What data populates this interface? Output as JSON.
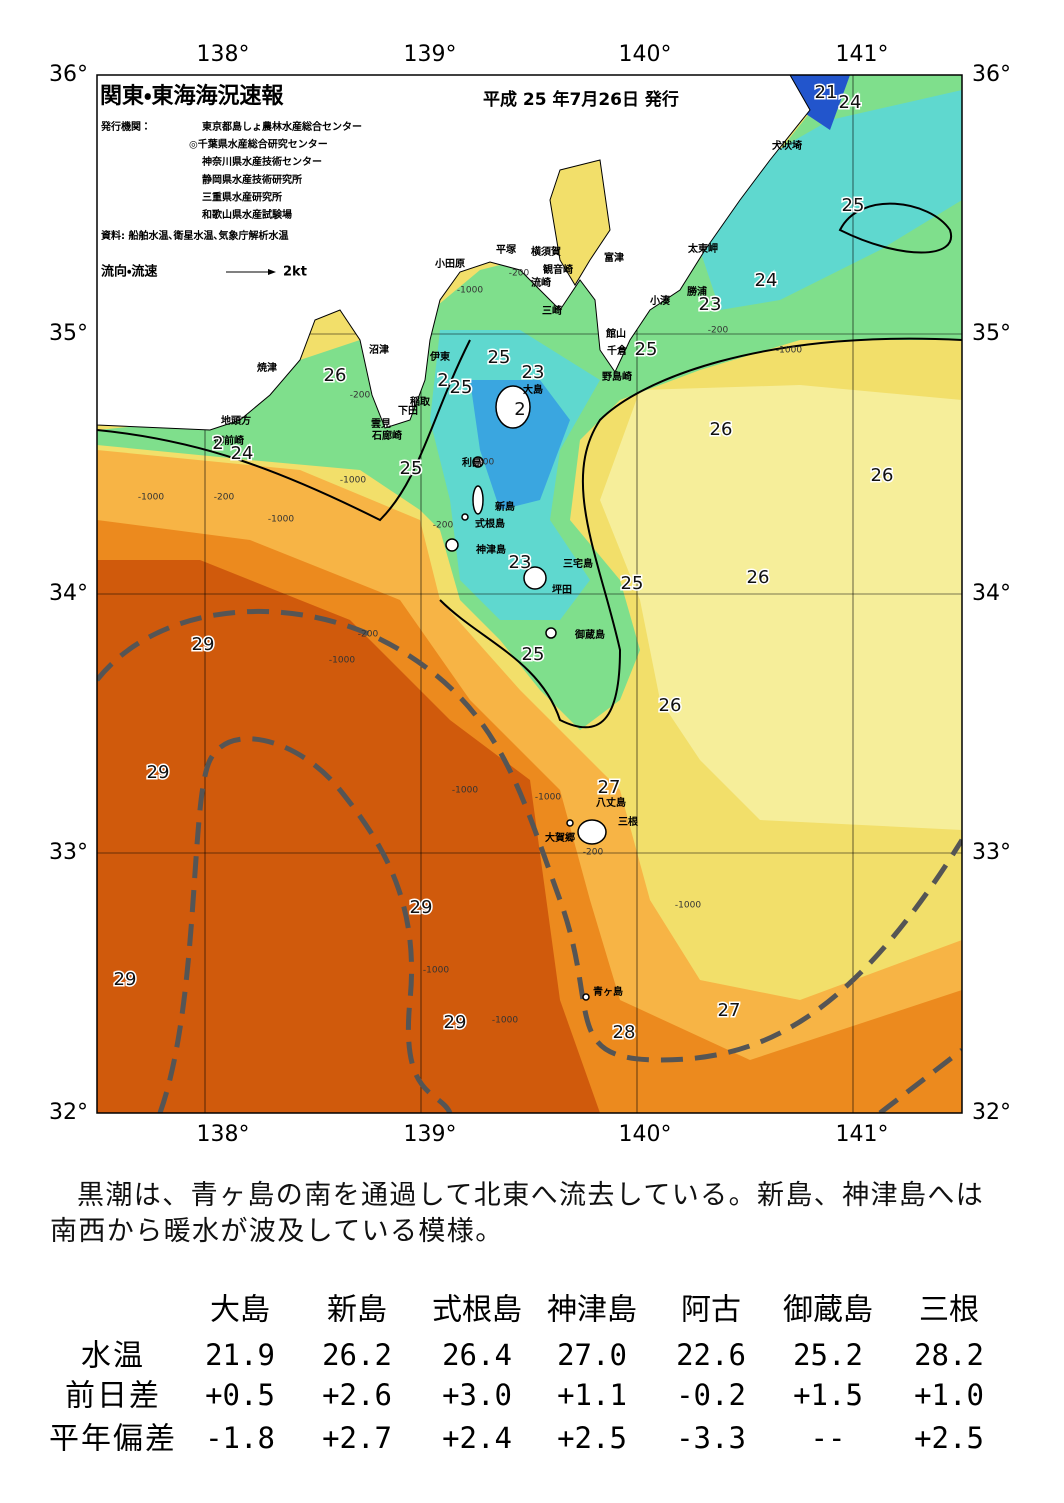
{
  "map": {
    "title": "関東・東海海況速報",
    "date": "平成 25 年7月26日 発行",
    "issuer_label": "発行機関：",
    "issuers": [
      "東京都島しょ農林水産総合センター",
      "◎千葉県水産総合研究センター",
      "神奈川県水産技術センター",
      "静岡県水産技術研究所",
      "三重県水産研究所",
      "和歌山県水産試験場"
    ],
    "source": "資料: 船舶水温､衛星水温､気象庁解析水温",
    "flow_legend": "流向・流速",
    "flow_scale": "2kt",
    "lon_labels": [
      "138°",
      "139°",
      "140°",
      "141°"
    ],
    "lat_labels": [
      "36°",
      "35°",
      "34°",
      "33°",
      "32°"
    ],
    "places": [
      "犬吠埼",
      "太東岬",
      "勝浦",
      "小湊",
      "館山",
      "千倉",
      "野島崎",
      "富津",
      "横須賀",
      "観音崎",
      "平塚",
      "流崎",
      "三崎",
      "小田原",
      "沼津",
      "伊東",
      "焼津",
      "稲取",
      "下田",
      "雲見",
      "石廊崎",
      "地頭方",
      "御前崎",
      "大島",
      "利島",
      "新島",
      "式根島",
      "神津島",
      "三宅島",
      "坪田",
      "御蔵島",
      "八丈島",
      "三根",
      "大賀郷",
      "青ヶ島"
    ],
    "isotherm_labels": [
      21,
      24,
      25,
      24,
      23,
      25,
      25,
      23,
      26,
      2,
      25,
      2,
      26,
      2,
      24,
      25,
      26,
      23,
      26,
      25,
      29,
      25,
      26,
      29,
      27,
      29,
      29,
      27,
      29,
      28
    ],
    "isobath_labels": [
      -200,
      -1000,
      -1000,
      -200,
      -1000,
      -200,
      -1000,
      -200,
      -200,
      -200,
      -1000,
      -1000,
      -1000,
      -200,
      -1000,
      -1000,
      -1000,
      -200,
      -1000
    ]
  },
  "description": "黒潮は、青ヶ島の南を通過して北東へ流去している。新島、神津島へは南西から暖水が波及している模様。",
  "table": {
    "columns": [
      "大島",
      "新島",
      "式根島",
      "神津島",
      "阿古",
      "御蔵島",
      "三根"
    ],
    "rows": [
      {
        "label": "水温",
        "values": [
          "21.9",
          "26.2",
          "26.4",
          "27.0",
          "22.6",
          "25.2",
          "28.2"
        ]
      },
      {
        "label": "前日差",
        "values": [
          "+0.5",
          "+2.6",
          "+3.0",
          "+1.1",
          "-0.2",
          "+1.5",
          "+1.0"
        ]
      },
      {
        "label": "平年偏差",
        "values": [
          "-1.8",
          "+2.7",
          "+2.4",
          "+2.5",
          "-3.3",
          "--",
          "+2.5"
        ]
      }
    ]
  }
}
